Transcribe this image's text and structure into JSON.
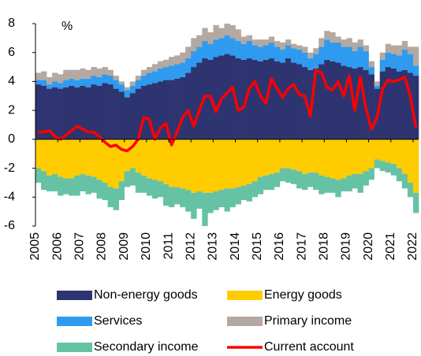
{
  "chart_data": {
    "type": "bar",
    "y_label": "%",
    "categories": [
      "2005",
      null,
      null,
      null,
      "2006",
      null,
      null,
      null,
      "2007",
      null,
      null,
      null,
      "2008",
      null,
      null,
      null,
      "2009",
      null,
      null,
      null,
      "2010",
      null,
      null,
      null,
      "2011",
      null,
      null,
      null,
      "2012",
      null,
      null,
      null,
      "2013",
      null,
      null,
      null,
      "2014",
      null,
      null,
      null,
      "2015",
      null,
      null,
      null,
      "2016",
      null,
      null,
      null,
      "2017",
      null,
      null,
      null,
      "2018",
      null,
      null,
      null,
      "2019",
      null,
      null,
      null,
      "2020",
      null,
      null,
      null,
      "2021",
      null,
      null,
      null,
      "2022"
    ],
    "ylim": [
      -6,
      8
    ],
    "yticks": [
      -6,
      -4,
      -2,
      0,
      2,
      4,
      6,
      8
    ],
    "series": [
      {
        "name": "Non-energy goods",
        "color": "#2e3470",
        "values": [
          3.8,
          3.7,
          3.5,
          3.6,
          3.5,
          3.6,
          3.7,
          3.6,
          3.7,
          3.6,
          3.8,
          3.7,
          3.9,
          3.8,
          3.5,
          3.3,
          2.9,
          3.2,
          3.5,
          3.7,
          3.8,
          3.9,
          4.0,
          4.1,
          4.1,
          4.2,
          4.3,
          4.6,
          5.0,
          5.3,
          5.6,
          5.5,
          5.7,
          5.8,
          5.9,
          5.8,
          5.6,
          5.5,
          5.6,
          5.5,
          5.4,
          5.5,
          5.6,
          5.4,
          5.3,
          5.6,
          5.3,
          5.2,
          5.0,
          4.8,
          4.9,
          5.2,
          5.5,
          5.4,
          5.3,
          5.1,
          5.0,
          4.9,
          5.0,
          4.8,
          4.5,
          3.5,
          4.7,
          5.0,
          4.9,
          4.7,
          4.8,
          4.6,
          4.4
        ]
      },
      {
        "name": "Energy goods",
        "color": "#ffcc00",
        "values": [
          -2.0,
          -2.2,
          -2.5,
          -2.4,
          -2.6,
          -2.7,
          -2.7,
          -2.5,
          -2.4,
          -2.5,
          -2.6,
          -2.8,
          -3.0,
          -3.3,
          -3.4,
          -2.9,
          -2.2,
          -2.0,
          -2.3,
          -2.5,
          -2.7,
          -2.8,
          -2.9,
          -3.1,
          -3.3,
          -3.3,
          -3.4,
          -3.5,
          -3.7,
          -3.6,
          -3.7,
          -3.7,
          -3.6,
          -3.5,
          -3.4,
          -3.4,
          -3.3,
          -3.2,
          -3.1,
          -2.9,
          -2.6,
          -2.5,
          -2.4,
          -2.3,
          -2.0,
          -2.0,
          -2.1,
          -2.2,
          -2.4,
          -2.3,
          -2.3,
          -2.5,
          -2.6,
          -2.7,
          -2.8,
          -2.7,
          -2.5,
          -2.4,
          -2.4,
          -2.2,
          -2.0,
          -1.4,
          -1.5,
          -1.6,
          -1.7,
          -2.0,
          -2.4,
          -3.0,
          -3.7
        ]
      },
      {
        "name": "Services",
        "color": "#2e9bf0",
        "values": [
          0.3,
          0.4,
          0.3,
          0.4,
          0.4,
          0.5,
          0.5,
          0.5,
          0.5,
          0.6,
          0.6,
          0.6,
          0.6,
          0.6,
          0.6,
          0.5,
          0.5,
          0.5,
          0.6,
          0.7,
          0.8,
          0.8,
          0.9,
          0.9,
          1.0,
          1.0,
          1.0,
          1.0,
          1.1,
          1.1,
          1.2,
          1.1,
          1.2,
          1.2,
          1.3,
          1.2,
          1.2,
          1.1,
          1.2,
          1.0,
          1.0,
          1.0,
          1.1,
          1.0,
          0.9,
          0.9,
          1.0,
          1.0,
          1.0,
          0.8,
          1.0,
          1.2,
          1.4,
          1.3,
          1.4,
          1.3,
          1.4,
          1.2,
          1.4,
          1.3,
          0.5,
          0.2,
          0.8,
          1.0,
          1.0,
          1.1,
          1.4,
          1.3,
          0.7
        ]
      },
      {
        "name": "Primary income",
        "color": "#b5a8a0",
        "values": [
          0.5,
          0.6,
          0.5,
          0.6,
          0.6,
          0.7,
          0.6,
          0.7,
          0.7,
          0.6,
          0.6,
          0.6,
          0.5,
          0.4,
          0.3,
          0.2,
          0.2,
          0.3,
          0.3,
          0.4,
          0.4,
          0.5,
          0.5,
          0.5,
          0.6,
          0.6,
          0.7,
          0.8,
          0.9,
          0.8,
          0.9,
          0.8,
          1.0,
          0.7,
          0.8,
          0.9,
          0.8,
          0.5,
          0.4,
          0.4,
          0.5,
          0.4,
          0.4,
          0.4,
          0.5,
          0.4,
          0.3,
          0.3,
          0.4,
          0.4,
          0.4,
          0.6,
          0.6,
          0.7,
          0.4,
          0.5,
          0.6,
          0.6,
          0.5,
          0.4,
          0.4,
          0.3,
          0.5,
          0.6,
          0.6,
          0.7,
          0.6,
          0.5,
          1.3
        ]
      },
      {
        "name": "Secondary income",
        "color": "#66c2a5",
        "values": [
          -1.0,
          -1.3,
          -1.1,
          -1.2,
          -1.3,
          -1.1,
          -1.2,
          -1.4,
          -1.2,
          -1.3,
          -1.1,
          -1.3,
          -1.2,
          -1.4,
          -1.5,
          -1.3,
          -1.1,
          -1.2,
          -1.4,
          -1.2,
          -1.2,
          -1.3,
          -1.1,
          -1.5,
          -1.4,
          -1.2,
          -1.3,
          -1.5,
          -1.8,
          -1.2,
          -2.3,
          -1.4,
          -1.3,
          -1.2,
          -1.6,
          -1.3,
          -1.2,
          -1.0,
          -1.2,
          -1.1,
          -1.2,
          -1.0,
          -1.1,
          -1.0,
          -0.9,
          -1.0,
          -1.0,
          -1.2,
          -1.1,
          -1.0,
          -1.2,
          -1.3,
          -1.1,
          -1.0,
          -1.2,
          -0.9,
          -1.1,
          -1.0,
          -1.3,
          -1.0,
          -0.8,
          -0.6,
          -0.7,
          -0.7,
          -0.8,
          -0.9,
          -1.0,
          -1.0,
          -1.4
        ]
      },
      {
        "name": "Current account",
        "color": "#ff0000",
        "type": "line",
        "values": [
          0.5,
          0.5,
          0.6,
          0.2,
          0.0,
          0.3,
          0.6,
          0.9,
          0.7,
          0.5,
          0.5,
          0.2,
          -0.2,
          -0.5,
          -0.4,
          -0.7,
          -0.8,
          -0.5,
          0.0,
          1.5,
          1.4,
          0.0,
          0.8,
          1.1,
          -0.4,
          0.5,
          1.5,
          2.0,
          0.9,
          2.0,
          3.0,
          3.0,
          1.9,
          2.8,
          3.2,
          3.6,
          2.0,
          2.2,
          3.5,
          4.0,
          3.0,
          2.5,
          4.2,
          3.5,
          2.9,
          3.5,
          3.8,
          3.1,
          3.0,
          1.6,
          4.8,
          4.6,
          3.6,
          3.4,
          4.0,
          3.0,
          4.4,
          2.0,
          4.3,
          2.2,
          0.7,
          1.5,
          3.5,
          4.1,
          4.0,
          4.1,
          4.3,
          3.0,
          0.8
        ]
      }
    ]
  }
}
